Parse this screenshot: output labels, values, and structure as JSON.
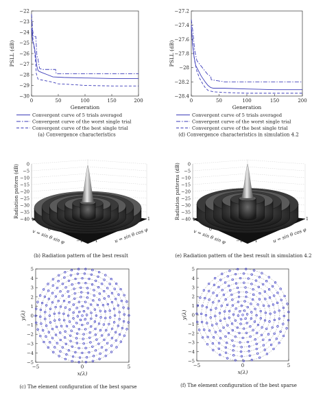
{
  "chart_data": [
    {
      "id": "a",
      "type": "line",
      "caption": "(a) Convergence characteristics",
      "xlabel": "Generation",
      "ylabel": "PSLL (dB)",
      "xlim": [
        0,
        200
      ],
      "ylim": [
        -30,
        -22
      ],
      "xticks": [
        0,
        50,
        100,
        150,
        200
      ],
      "yticks": [
        -22,
        -23,
        -24,
        -25,
        -26,
        -27,
        -28,
        -29,
        -30
      ],
      "legend_position": "below",
      "series": [
        {
          "name": "Convergent curve of 5 trials averaged",
          "color": "#3a3ab8",
          "dash": "",
          "x": [
            0,
            2,
            4,
            6,
            8,
            10,
            12,
            15,
            20,
            30,
            40,
            60,
            100,
            150,
            200
          ],
          "y": [
            -23.6,
            -24.8,
            -25.1,
            -25.6,
            -26.4,
            -27.2,
            -27.6,
            -27.7,
            -27.8,
            -28.0,
            -28.2,
            -28.25,
            -28.3,
            -28.35,
            -28.35
          ]
        },
        {
          "name": "Convergent curve of the worst single trial",
          "color": "#3a3ab8",
          "dash": "6,2,1.5,2",
          "x": [
            0,
            3,
            6,
            8,
            10,
            12,
            15,
            20,
            30,
            45,
            46,
            100,
            150,
            200
          ],
          "y": [
            -22.3,
            -24.4,
            -24.4,
            -24.4,
            -26.2,
            -26.5,
            -27.4,
            -27.5,
            -27.5,
            -27.5,
            -27.9,
            -27.9,
            -27.9,
            -27.9
          ]
        },
        {
          "name": "Convergent curve of the best single trial",
          "color": "#3a3ab8",
          "dash": "4,2.5",
          "x": [
            0,
            3,
            6,
            9,
            12,
            15,
            20,
            30,
            40,
            50,
            70,
            100,
            150,
            200
          ],
          "y": [
            -22.8,
            -24.9,
            -25.8,
            -27.9,
            -28.4,
            -28.45,
            -28.5,
            -28.6,
            -28.7,
            -28.85,
            -28.9,
            -29.0,
            -29.05,
            -29.05
          ]
        }
      ]
    },
    {
      "id": "d",
      "type": "line",
      "caption": "(d) Convergence characteristics in simulation 4.2",
      "xlabel": "Generation",
      "ylabel": "PSLL (dB)",
      "xlim": [
        0,
        200
      ],
      "ylim": [
        -28.4,
        -27.2
      ],
      "xticks": [
        0,
        50,
        100,
        150,
        200
      ],
      "yticks": [
        -27.2,
        -27.4,
        -27.6,
        -27.8,
        -28,
        -28.2,
        -28.4
      ],
      "legend_position": "below",
      "series": [
        {
          "name": "Convergent curve of 5 trials averaged",
          "color": "#3a3ab8",
          "dash": "",
          "x": [
            0,
            2,
            5,
            8,
            12,
            18,
            25,
            30,
            35,
            40,
            60,
            100,
            150,
            200
          ],
          "y": [
            -27.42,
            -27.65,
            -27.85,
            -27.97,
            -28.03,
            -28.12,
            -28.2,
            -28.25,
            -28.28,
            -28.29,
            -28.29,
            -28.3,
            -28.31,
            -28.31
          ]
        },
        {
          "name": "Convergent curve of the worst single trial",
          "color": "#3a3ab8",
          "dash": "6,2,1.5,2",
          "x": [
            0,
            3,
            6,
            10,
            15,
            20,
            25,
            30,
            35,
            36,
            60,
            100,
            150,
            200
          ],
          "y": [
            -27.32,
            -27.5,
            -27.75,
            -27.9,
            -27.95,
            -28.0,
            -28.05,
            -28.1,
            -28.12,
            -28.17,
            -28.2,
            -28.2,
            -28.2,
            -28.2
          ]
        },
        {
          "name": "Convergent curve of the best single trial",
          "color": "#3a3ab8",
          "dash": "4,2.5",
          "x": [
            0,
            3,
            6,
            10,
            15,
            20,
            25,
            30,
            40,
            60,
            100,
            150,
            200
          ],
          "y": [
            -27.4,
            -27.7,
            -27.9,
            -28.05,
            -28.15,
            -28.22,
            -28.28,
            -28.32,
            -28.34,
            -28.35,
            -28.36,
            -28.36,
            -28.36
          ]
        }
      ]
    },
    {
      "id": "b",
      "type": "surface",
      "caption": "(b) Radiation pattern of the best result",
      "zlabel": "Radiation pattern (dB)",
      "xlabel": "u = sin θ cos φ",
      "ylabel": "v = sin θ sin φ",
      "zticks": [
        0,
        -5,
        -10,
        -15,
        -20,
        -25,
        -30,
        -35,
        -40
      ],
      "uticks": [
        "−1",
        "0",
        "1"
      ],
      "vticks": [
        "−1",
        "0",
        "1"
      ]
    },
    {
      "id": "e",
      "type": "surface",
      "caption": "(e) Radiation pattern of the best result in simulation 4.2",
      "zlabel": "Radiation patterns (dB)",
      "xlabel": "u = sin θ cos φ",
      "ylabel": "v = sin θ sin φ",
      "zticks": [
        0,
        -5,
        -10,
        -15,
        -20,
        -25,
        -30,
        -35,
        -40
      ],
      "uticks": [
        "−1",
        "0",
        "1"
      ],
      "vticks": [
        "−1",
        "0",
        "1"
      ]
    },
    {
      "id": "c",
      "type": "scatter",
      "caption": "(c) The element configuration of the best sparse",
      "xlabel": "x(λ)",
      "ylabel": "y(λ)",
      "xlim": [
        -5,
        5
      ],
      "ylim": [
        -5,
        5
      ],
      "xticks": [
        -5,
        0,
        5
      ],
      "yticks": [
        5,
        4,
        3,
        2,
        1,
        0,
        -1,
        -2,
        -3,
        -4,
        -5
      ],
      "rings": [
        {
          "radius": 0.5,
          "count": 6
        },
        {
          "radius": 1.0,
          "count": 10
        },
        {
          "radius": 1.5,
          "count": 14
        },
        {
          "radius": 2.0,
          "count": 18
        },
        {
          "radius": 2.5,
          "count": 22
        },
        {
          "radius": 3.0,
          "count": 26
        },
        {
          "radius": 3.5,
          "count": 30
        },
        {
          "radius": 4.0,
          "count": 34
        },
        {
          "radius": 4.5,
          "count": 38
        },
        {
          "radius": 5.0,
          "count": 42
        }
      ]
    },
    {
      "id": "f",
      "type": "scatter",
      "caption": "(f) The element configuration of the best sparse",
      "xlabel": "x(λ)",
      "ylabel": "y(λ)",
      "xlim": [
        -5,
        5
      ],
      "ylim": [
        -5,
        5
      ],
      "xticks": [
        -5,
        0,
        5
      ],
      "yticks": [
        5,
        4,
        3,
        2,
        1,
        0,
        -1,
        -2,
        -3,
        -4,
        -5
      ],
      "rings": [
        {
          "radius": 0.5,
          "count": 6
        },
        {
          "radius": 1.0,
          "count": 9
        },
        {
          "radius": 1.5,
          "count": 13
        },
        {
          "radius": 2.0,
          "count": 16
        },
        {
          "radius": 2.5,
          "count": 19
        },
        {
          "radius": 3.0,
          "count": 22
        },
        {
          "radius": 3.5,
          "count": 26
        },
        {
          "radius": 4.0,
          "count": 29
        },
        {
          "radius": 4.5,
          "count": 32
        },
        {
          "radius": 5.0,
          "count": 35
        }
      ]
    }
  ]
}
